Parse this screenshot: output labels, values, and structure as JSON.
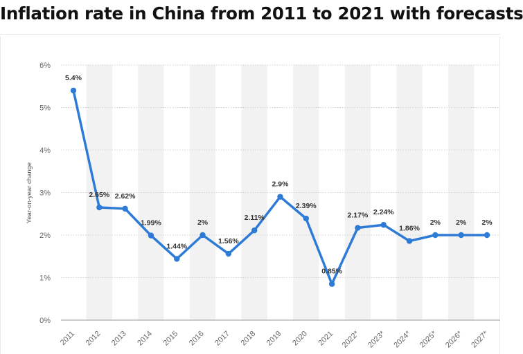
{
  "title": "Inflation rate in China from 2011 to 2021 with forecasts",
  "colors": {
    "line": "#2d7bd6",
    "band": "#f2f2f2",
    "grid": "#d0d0d0",
    "text": "#333333"
  },
  "chart_data": {
    "type": "line",
    "title": "Inflation rate in China from 2011 to 2021 with forecasts",
    "xlabel": "",
    "ylabel": "Year-on-year change",
    "ylim": [
      0,
      6
    ],
    "grid": true,
    "yticks": [
      "0%",
      "1%",
      "2%",
      "3%",
      "4%",
      "5%",
      "6%"
    ],
    "categories": [
      "2011",
      "2012",
      "2013",
      "2014",
      "2015",
      "2016",
      "2017",
      "2018",
      "2019",
      "2020",
      "2021",
      "2022*",
      "2023*",
      "2024*",
      "2025*",
      "2026*",
      "2027*"
    ],
    "series": [
      {
        "name": "Inflation rate",
        "values": [
          5.4,
          2.65,
          2.62,
          1.99,
          1.44,
          2,
          1.56,
          2.11,
          2.9,
          2.39,
          0.85,
          2.17,
          2.24,
          1.86,
          2,
          2,
          2
        ],
        "labels": [
          "5.4%",
          "2.65%",
          "2.62%",
          "1.99%",
          "1.44%",
          "2%",
          "1.56%",
          "2.11%",
          "2.9%",
          "2.39%",
          "0.85%",
          "2.17%",
          "2.24%",
          "1.86%",
          "2%",
          "2%",
          "2%"
        ]
      }
    ]
  }
}
